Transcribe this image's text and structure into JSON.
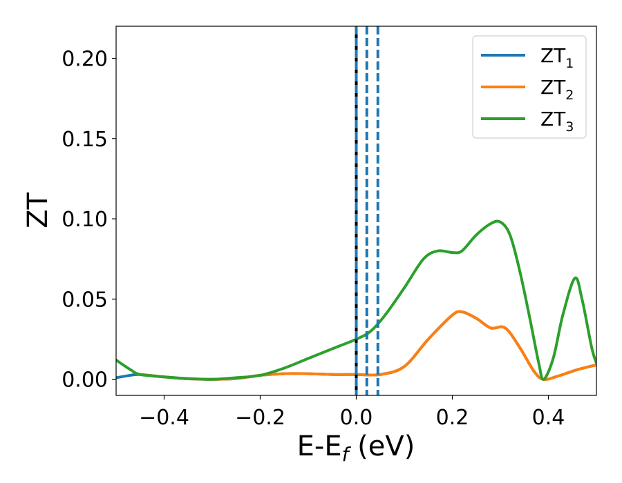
{
  "chart_data": {
    "type": "line",
    "xlabel_main": "E-E",
    "xlabel_sub": "f",
    "xlabel_unit": " (eV)",
    "ylabel": "ZT",
    "xlim": [
      -0.5,
      0.5
    ],
    "ylim": [
      -0.01,
      0.22
    ],
    "xticks": [
      -0.4,
      -0.2,
      0.0,
      0.2,
      0.4
    ],
    "xtick_labels": [
      "−0.4",
      "−0.2",
      "0.0",
      "0.2",
      "0.4"
    ],
    "yticks": [
      0.0,
      0.05,
      0.1,
      0.15,
      0.2
    ],
    "ytick_labels": [
      "0.00",
      "0.05",
      "0.10",
      "0.15",
      "0.20"
    ],
    "grid": false,
    "legend_position": "top-right",
    "vlines": [
      {
        "x": 0.0,
        "color": "#000000",
        "style": "solid"
      },
      {
        "x": 0.0,
        "color": "#1f77b4",
        "style": "dashed"
      },
      {
        "x": 0.022,
        "color": "#1f77b4",
        "style": "dashed"
      },
      {
        "x": 0.045,
        "color": "#1f77b4",
        "style": "dashed"
      }
    ],
    "series": [
      {
        "name": "ZT",
        "sub": "1",
        "color": "#1f77b4",
        "x": [
          -0.5,
          -0.47,
          -0.45,
          -0.4,
          -0.35,
          -0.3,
          -0.25,
          -0.2,
          -0.15,
          -0.1,
          -0.05,
          0.0,
          0.05,
          0.1,
          0.15,
          0.2,
          0.22,
          0.25,
          0.28,
          0.31,
          0.34,
          0.37,
          0.39,
          0.42,
          0.46,
          0.5
        ],
        "y": [
          0.001,
          0.0025,
          0.003,
          0.0015,
          0.0003,
          0.0,
          0.0005,
          0.0025,
          0.0035,
          0.0035,
          0.003,
          0.003,
          0.003,
          0.008,
          0.025,
          0.04,
          0.042,
          0.038,
          0.032,
          0.032,
          0.02,
          0.005,
          0.0,
          0.002,
          0.006,
          0.009
        ]
      },
      {
        "name": "ZT",
        "sub": "2",
        "color": "#ff7f0e",
        "x": [
          -0.45,
          -0.4,
          -0.35,
          -0.3,
          -0.25,
          -0.2,
          -0.15,
          -0.1,
          -0.05,
          0.0,
          0.05,
          0.1,
          0.15,
          0.2,
          0.22,
          0.25,
          0.28,
          0.31,
          0.34,
          0.37,
          0.39,
          0.42,
          0.46,
          0.5
        ],
        "y": [
          0.003,
          0.0015,
          0.0003,
          0.0,
          0.0005,
          0.0025,
          0.0035,
          0.0035,
          0.003,
          0.003,
          0.003,
          0.008,
          0.025,
          0.04,
          0.042,
          0.038,
          0.032,
          0.032,
          0.02,
          0.005,
          0.0,
          0.002,
          0.006,
          0.009
        ]
      },
      {
        "name": "ZT",
        "sub": "3",
        "color": "#2ca02c",
        "x": [
          -0.5,
          -0.47,
          -0.45,
          -0.4,
          -0.35,
          -0.3,
          -0.25,
          -0.2,
          -0.15,
          -0.1,
          -0.05,
          0.0,
          0.03,
          0.06,
          0.1,
          0.14,
          0.17,
          0.2,
          0.22,
          0.25,
          0.28,
          0.3,
          0.32,
          0.34,
          0.36,
          0.38,
          0.39,
          0.41,
          0.43,
          0.455,
          0.47,
          0.49,
          0.5
        ],
        "y": [
          0.012,
          0.006,
          0.003,
          0.0015,
          0.0005,
          0.0,
          0.001,
          0.0025,
          0.007,
          0.013,
          0.019,
          0.025,
          0.03,
          0.04,
          0.057,
          0.075,
          0.08,
          0.079,
          0.08,
          0.09,
          0.097,
          0.098,
          0.09,
          0.068,
          0.04,
          0.01,
          0.0,
          0.013,
          0.04,
          0.063,
          0.05,
          0.02,
          0.01
        ]
      }
    ]
  }
}
